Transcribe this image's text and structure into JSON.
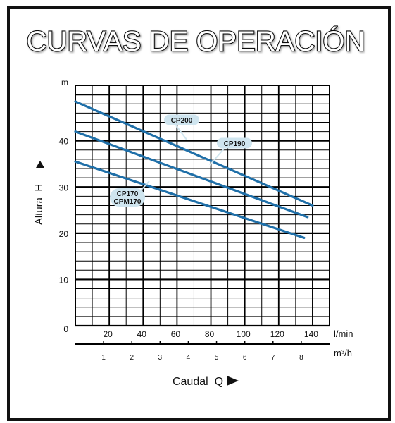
{
  "chart_data": {
    "type": "line",
    "title": "CURVAS DE OPERACIÓN",
    "ylabel": "Altura  H",
    "y_unit": "m",
    "xlabel": "Caudal  Q",
    "x_unit": "l/min",
    "x2_unit": "m³/h",
    "xlim": [
      0,
      150
    ],
    "ylim": [
      0,
      52
    ],
    "x_ticks": [
      "20",
      "40",
      "60",
      "80",
      "100",
      "120",
      "140"
    ],
    "y_ticks": [
      "0",
      "10",
      "20",
      "30",
      "40"
    ],
    "x2_ticks": [
      "1",
      "2",
      "3",
      "4",
      "5",
      "6",
      "7",
      "8"
    ],
    "grid": true,
    "series": [
      {
        "name": "CP200",
        "x": [
          0,
          140
        ],
        "y": [
          48.5,
          26
        ]
      },
      {
        "name": "CP190",
        "x": [
          0,
          137
        ],
        "y": [
          42,
          23.5
        ]
      },
      {
        "name": "CP170\nCPM170",
        "x": [
          0,
          135
        ],
        "y": [
          35.5,
          19
        ]
      }
    ],
    "colors": {
      "line": "#1f6fa8",
      "label_bg": "#cfe5ef",
      "grid": "#000000"
    }
  }
}
